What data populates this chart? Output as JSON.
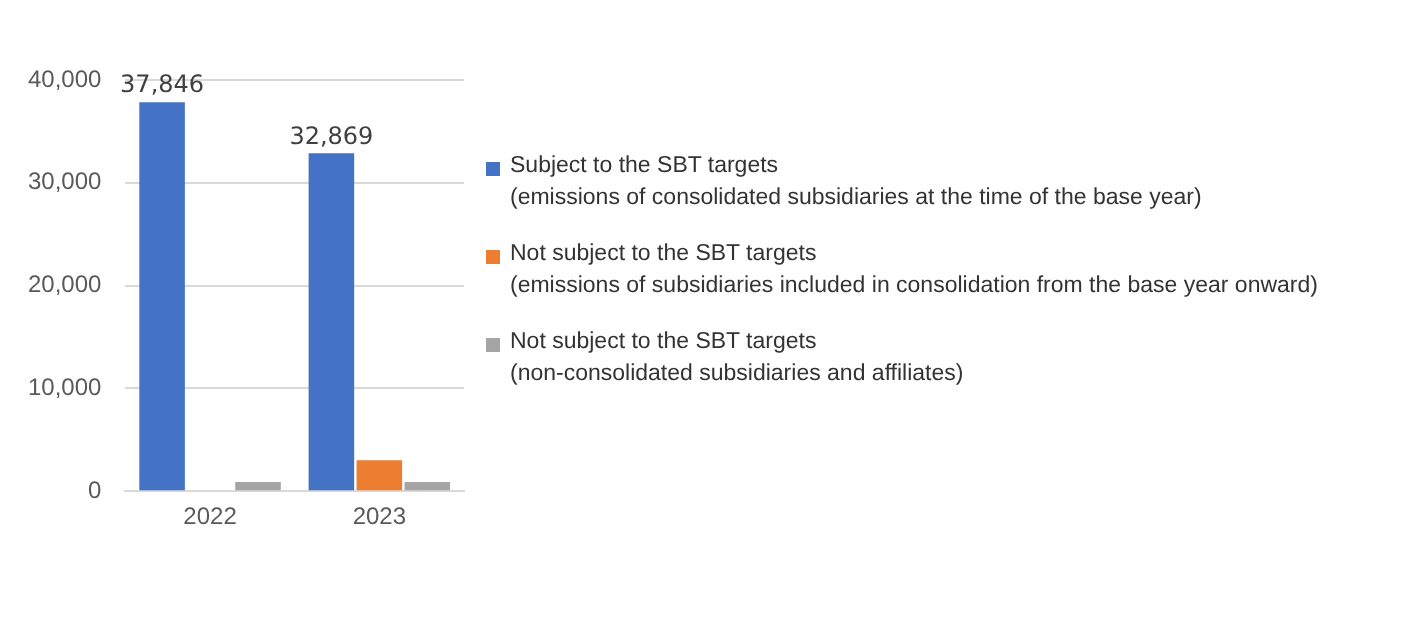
{
  "chart_data": {
    "type": "bar",
    "categories": [
      "2022",
      "2023"
    ],
    "series": [
      {
        "name": "Subject to the SBT targets\n(emissions of consolidated subsidiaries at the time of the base year)",
        "color": "#4472c4",
        "values": [
          37846,
          32869
        ],
        "value_labels": [
          "37,846",
          "32,869"
        ]
      },
      {
        "name": "Not subject to the SBT targets\n(emissions of subsidiaries included in consolidation from the base year onward)",
        "color": "#ed7d31",
        "values": [
          0,
          3000
        ]
      },
      {
        "name": "Not subject to the SBT targets\n(non-consolidated subsidiaries and affiliates)",
        "color": "#a5a5a5",
        "values": [
          900,
          900
        ]
      }
    ],
    "ylim": [
      0,
      40000
    ],
    "yticks": [
      0,
      {
        "value": 10000,
        "label": "10,000"
      },
      {
        "value": 20000,
        "label": "20,000"
      },
      {
        "value": 30000,
        "label": "30,000"
      },
      {
        "value": 40000,
        "label": "40,000"
      }
    ],
    "grid": "y",
    "legend": "right"
  }
}
